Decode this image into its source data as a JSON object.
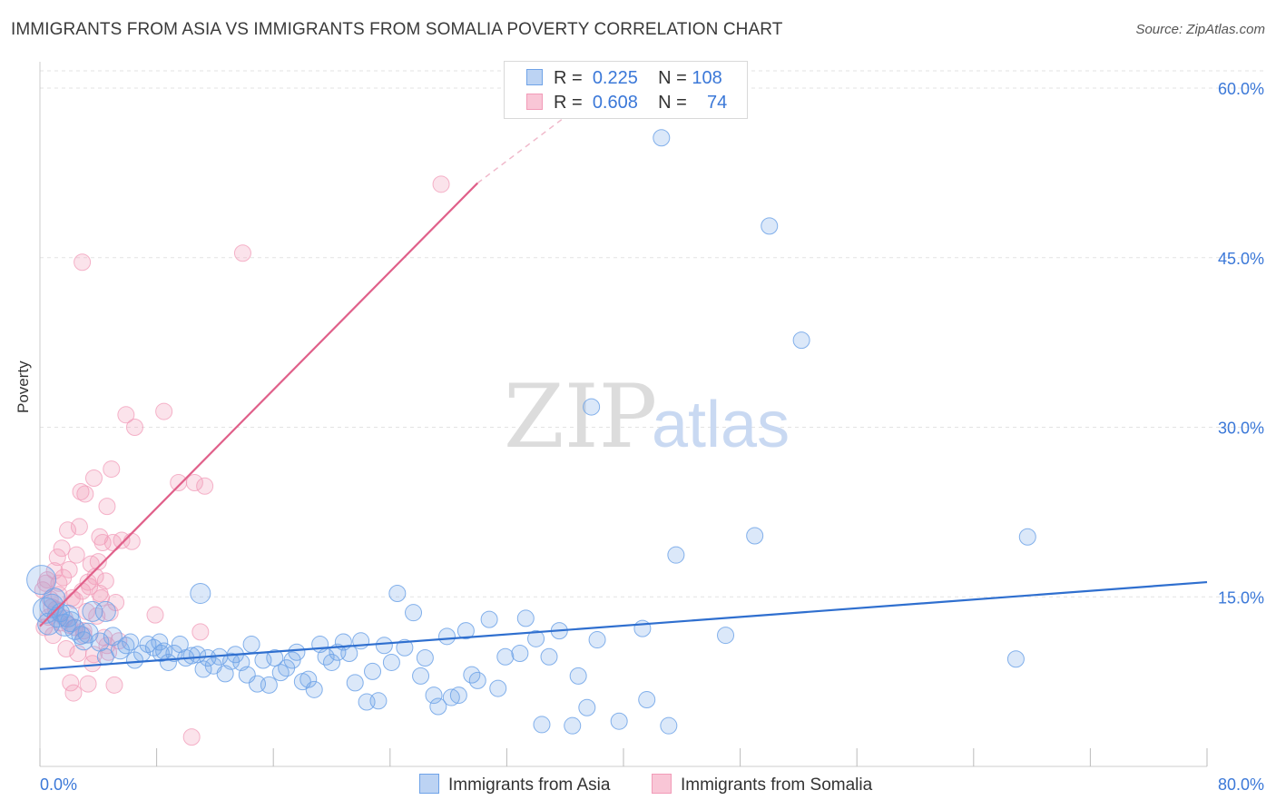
{
  "title": "IMMIGRANTS FROM ASIA VS IMMIGRANTS FROM SOMALIA POVERTY CORRELATION CHART",
  "source": "Source: ZipAtlas.com",
  "watermark": {
    "zip": "ZIP",
    "atlas": "atlas"
  },
  "legend": {
    "rows": [
      {
        "r_label": "R =",
        "r_value": "0.225",
        "n_label": "N =",
        "n_value": "108"
      },
      {
        "r_label": "R =",
        "r_value": "0.608",
        "n_label": "N =",
        "n_value": "74"
      }
    ]
  },
  "bottom_legend": {
    "asia": "Immigrants from Asia",
    "somalia": "Immigrants from Somalia"
  },
  "chart_data": {
    "type": "scatter",
    "title": "IMMIGRANTS FROM ASIA VS IMMIGRANTS FROM SOMALIA POVERTY CORRELATION CHART",
    "xlabel": "",
    "ylabel": "Poverty",
    "xlim": [
      0,
      80
    ],
    "ylim": [
      0,
      62
    ],
    "x_tick_labels": {
      "min": "0.0%",
      "max": "80.0%"
    },
    "y_ticks": [
      15,
      30,
      45,
      60
    ],
    "y_tick_labels": [
      "15.0%",
      "30.0%",
      "45.0%",
      "60.0%"
    ],
    "colors": {
      "asia": "#6fa3e8",
      "asia_line": "#2f6fcf",
      "somalia": "#f29bb8",
      "somalia_line": "#e0608a",
      "tick_text": "#3b78d8"
    },
    "series": [
      {
        "name": "Immigrants from Asia",
        "trend": {
          "x0": 0,
          "y0": 8.6,
          "x1": 80,
          "y1": 16.3
        },
        "points": [
          [
            0.1,
            16.5,
            16
          ],
          [
            0.4,
            13.8,
            14
          ],
          [
            0.6,
            12.6,
            12
          ],
          [
            0.8,
            14.2,
            13
          ],
          [
            1.0,
            14.8,
            12
          ],
          [
            1.2,
            13.2,
            11
          ],
          [
            1.4,
            13.6,
            10
          ],
          [
            1.7,
            12.5,
            12
          ],
          [
            1.9,
            13.3,
            12
          ],
          [
            2.1,
            12.8,
            11
          ],
          [
            2.4,
            12.1,
            11
          ],
          [
            2.8,
            11.6,
            10
          ],
          [
            3.0,
            11.1,
            10
          ],
          [
            3.3,
            11.8,
            11
          ],
          [
            3.6,
            13.7,
            11
          ],
          [
            4.1,
            11.0,
            10
          ],
          [
            4.5,
            9.7,
            9
          ],
          [
            5.0,
            11.5,
            10
          ],
          [
            5.5,
            10.3,
            10
          ],
          [
            5.9,
            10.7,
            9
          ],
          [
            6.2,
            11.0,
            9
          ],
          [
            6.5,
            9.4,
            9
          ],
          [
            7.0,
            10.0,
            9
          ],
          [
            7.4,
            10.8,
            9
          ],
          [
            7.8,
            10.5,
            9
          ],
          [
            8.2,
            11.0,
            9
          ],
          [
            8.5,
            10.2,
            9
          ],
          [
            8.8,
            9.2,
            9
          ],
          [
            9.2,
            10.0,
            9
          ],
          [
            9.6,
            10.8,
            9
          ],
          [
            10.0,
            9.6,
            9
          ],
          [
            10.4,
            9.8,
            9
          ],
          [
            10.8,
            9.9,
            9
          ],
          [
            11.2,
            8.6,
            9
          ],
          [
            11.5,
            9.6,
            9
          ],
          [
            11.9,
            8.9,
            9
          ],
          [
            12.3,
            9.7,
            9
          ],
          [
            12.7,
            8.2,
            9
          ],
          [
            13.1,
            9.3,
            9
          ],
          [
            13.4,
            9.9,
            9
          ],
          [
            13.8,
            9.2,
            9
          ],
          [
            14.2,
            8.1,
            9
          ],
          [
            14.5,
            10.8,
            9
          ],
          [
            14.9,
            7.3,
            9
          ],
          [
            15.3,
            9.4,
            9
          ],
          [
            15.7,
            7.2,
            9
          ],
          [
            16.1,
            9.6,
            9
          ],
          [
            16.5,
            8.3,
            9
          ],
          [
            16.9,
            8.7,
            9
          ],
          [
            17.3,
            9.4,
            9
          ],
          [
            17.6,
            10.1,
            9
          ],
          [
            18.0,
            7.5,
            9
          ],
          [
            18.4,
            7.7,
            9
          ],
          [
            18.8,
            6.8,
            9
          ],
          [
            19.2,
            10.8,
            9
          ],
          [
            19.6,
            9.7,
            9
          ],
          [
            20.0,
            9.2,
            9
          ],
          [
            20.4,
            10.1,
            9
          ],
          [
            20.8,
            11.0,
            9
          ],
          [
            21.2,
            10.0,
            9
          ],
          [
            21.6,
            7.4,
            9
          ],
          [
            22.0,
            11.1,
            9
          ],
          [
            22.4,
            5.7,
            9
          ],
          [
            22.8,
            8.4,
            9
          ],
          [
            23.2,
            5.8,
            9
          ],
          [
            23.6,
            10.7,
            9
          ],
          [
            24.1,
            9.2,
            9
          ],
          [
            24.5,
            15.3,
            9
          ],
          [
            25.0,
            10.5,
            9
          ],
          [
            25.6,
            13.6,
            9
          ],
          [
            26.1,
            8.0,
            9
          ],
          [
            26.4,
            9.6,
            9
          ],
          [
            27.0,
            6.3,
            9
          ],
          [
            27.3,
            5.3,
            9
          ],
          [
            27.9,
            11.5,
            9
          ],
          [
            28.2,
            6.1,
            9
          ],
          [
            28.7,
            6.3,
            9
          ],
          [
            29.2,
            12.0,
            9
          ],
          [
            29.6,
            8.1,
            9
          ],
          [
            30.0,
            7.6,
            9
          ],
          [
            30.8,
            13.0,
            9
          ],
          [
            31.4,
            6.9,
            9
          ],
          [
            31.9,
            9.7,
            9
          ],
          [
            32.9,
            10.0,
            9
          ],
          [
            33.3,
            13.1,
            9
          ],
          [
            34.0,
            11.3,
            9
          ],
          [
            34.4,
            3.7,
            9
          ],
          [
            34.9,
            9.7,
            9
          ],
          [
            35.6,
            12.0,
            9
          ],
          [
            36.5,
            3.6,
            9
          ],
          [
            36.9,
            8.0,
            9
          ],
          [
            37.5,
            5.2,
            9
          ],
          [
            37.8,
            31.8,
            9
          ],
          [
            38.2,
            11.2,
            9
          ],
          [
            39.7,
            4.0,
            9
          ],
          [
            41.3,
            12.2,
            9
          ],
          [
            41.6,
            5.9,
            9
          ],
          [
            42.6,
            55.6,
            9
          ],
          [
            43.1,
            3.6,
            9
          ],
          [
            43.6,
            18.7,
            9
          ],
          [
            47.0,
            11.6,
            9
          ],
          [
            49.0,
            20.4,
            9
          ],
          [
            50.0,
            47.8,
            9
          ],
          [
            52.2,
            37.7,
            9
          ],
          [
            66.9,
            9.5,
            9
          ],
          [
            67.7,
            20.3,
            9
          ],
          [
            4.5,
            13.7,
            11
          ],
          [
            8.3,
            10.0,
            9
          ],
          [
            11.0,
            15.3,
            11
          ]
        ]
      },
      {
        "name": "Immigrants from Somalia",
        "trend": {
          "x0": 0,
          "y0": 12.4,
          "x1": 30,
          "y1": 51.6,
          "dash_x1": 38,
          "dash_y1": 59.4
        },
        "points": [
          [
            0.2,
            15.6,
            9
          ],
          [
            0.3,
            12.3,
            9
          ],
          [
            0.5,
            16.5,
            9
          ],
          [
            0.6,
            13.2,
            9
          ],
          [
            0.8,
            14.1,
            9
          ],
          [
            0.9,
            11.6,
            9
          ],
          [
            1.0,
            17.3,
            9
          ],
          [
            1.1,
            13.9,
            9
          ],
          [
            1.2,
            18.5,
            9
          ],
          [
            1.3,
            15.2,
            9
          ],
          [
            1.4,
            12.7,
            9
          ],
          [
            1.5,
            19.3,
            9
          ],
          [
            1.6,
            16.7,
            9
          ],
          [
            1.7,
            13.1,
            9
          ],
          [
            1.8,
            10.4,
            9
          ],
          [
            1.9,
            20.9,
            9
          ],
          [
            2.0,
            17.4,
            9
          ],
          [
            2.1,
            7.4,
            9
          ],
          [
            2.2,
            14.9,
            9
          ],
          [
            2.3,
            6.5,
            9
          ],
          [
            2.4,
            12.3,
            9
          ],
          [
            2.5,
            18.7,
            9
          ],
          [
            2.6,
            10.0,
            9
          ],
          [
            2.7,
            21.2,
            9
          ],
          [
            2.8,
            24.3,
            9
          ],
          [
            2.9,
            15.5,
            9
          ],
          [
            3.0,
            11.6,
            9
          ],
          [
            3.1,
            24.1,
            9
          ],
          [
            3.2,
            13.7,
            9
          ],
          [
            3.3,
            7.3,
            9
          ],
          [
            3.4,
            15.9,
            9
          ],
          [
            3.5,
            17.9,
            9
          ],
          [
            3.6,
            9.1,
            9
          ],
          [
            3.7,
            25.5,
            9
          ],
          [
            3.8,
            16.8,
            9
          ],
          [
            3.9,
            13.3,
            9
          ],
          [
            4.0,
            18.1,
            9
          ],
          [
            4.1,
            20.3,
            9
          ],
          [
            4.2,
            14.9,
            9
          ],
          [
            4.3,
            19.8,
            9
          ],
          [
            4.4,
            11.4,
            9
          ],
          [
            4.5,
            16.4,
            9
          ],
          [
            4.6,
            23.0,
            9
          ],
          [
            4.7,
            10.1,
            9
          ],
          [
            4.8,
            13.6,
            9
          ],
          [
            4.9,
            26.3,
            9
          ],
          [
            5.0,
            19.8,
            9
          ],
          [
            5.1,
            7.2,
            9
          ],
          [
            5.2,
            14.5,
            9
          ],
          [
            5.4,
            11.1,
            9
          ],
          [
            5.6,
            20.0,
            9
          ],
          [
            5.9,
            31.1,
            9
          ],
          [
            6.3,
            19.9,
            9
          ],
          [
            6.5,
            30.0,
            9
          ],
          [
            7.9,
            13.4,
            9
          ],
          [
            8.5,
            31.4,
            9
          ],
          [
            9.5,
            25.1,
            9
          ],
          [
            10.4,
            2.6,
            9
          ],
          [
            10.6,
            25.1,
            9
          ],
          [
            11.3,
            24.8,
            9
          ],
          [
            11.0,
            11.9,
            9
          ],
          [
            13.9,
            45.4,
            9
          ],
          [
            27.5,
            51.5,
            9
          ],
          [
            2.9,
            44.6,
            9
          ],
          [
            0.4,
            16.2,
            9
          ],
          [
            0.7,
            14.8,
            9
          ],
          [
            1.3,
            16.2,
            9
          ],
          [
            2.0,
            12.5,
            9
          ],
          [
            2.4,
            14.7,
            9
          ],
          [
            3.0,
            12.0,
            9
          ],
          [
            3.3,
            16.3,
            9
          ],
          [
            3.7,
            9.9,
            9
          ],
          [
            4.1,
            15.3,
            9
          ],
          [
            4.6,
            10.7,
            9
          ]
        ]
      }
    ]
  }
}
